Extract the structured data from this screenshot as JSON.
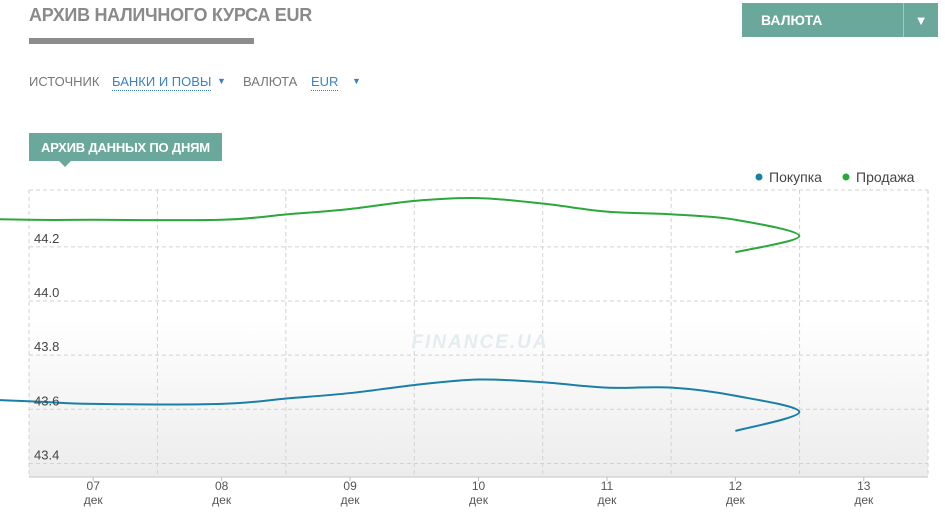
{
  "header": {
    "title": "АРХИВ НАЛИЧНОГО КУРСА EUR",
    "currency_button_label": "ВАЛЮТА",
    "currency_button_arrow": "▼"
  },
  "filters": {
    "source_label": "ИСТОЧНИК",
    "source_value": "БАНКИ И ПОВЫ",
    "currency_label": "ВАЛЮТА",
    "currency_value": "EUR",
    "arrow": "▼"
  },
  "archive_label": "АРХИВ ДАННЫХ ПО ДНЯМ",
  "watermark": "FINANCE.UA",
  "colors": {
    "accent": "#6aa89c",
    "buy": "#1a7fa8",
    "sell": "#2aa83c",
    "link": "#3b82c4"
  },
  "chart_data": {
    "type": "line",
    "title": "",
    "xlabel": "",
    "ylabel": "",
    "x": [
      "07 дек",
      "08 дек",
      "09 дек",
      "10 дек",
      "11 дек",
      "12 дек",
      "13 дек"
    ],
    "x_ticks": [
      {
        "day": "07",
        "month": "дек"
      },
      {
        "day": "08",
        "month": "дек"
      },
      {
        "day": "09",
        "month": "дек"
      },
      {
        "day": "10",
        "month": "дек"
      },
      {
        "day": "11",
        "month": "дек"
      },
      {
        "day": "12",
        "month": "дек"
      },
      {
        "day": "13",
        "month": "дек"
      }
    ],
    "y_ticks": [
      "43.4",
      "43.6",
      "43.8",
      "44.0",
      "44.2"
    ],
    "ylim": [
      43.35,
      44.41
    ],
    "grid": true,
    "legend_position": "top-right",
    "series": [
      {
        "name": "Покупка",
        "color": "#1a7fa8",
        "points": [
          [
            "06 дек",
            43.65
          ],
          [
            "07 дек",
            43.63
          ],
          [
            "07 дек",
            43.62
          ],
          [
            "08 дек",
            43.62
          ],
          [
            "08 дек",
            43.64
          ],
          [
            "09 дек",
            43.66
          ],
          [
            "09 дек",
            43.69
          ],
          [
            "10 дек",
            43.71
          ],
          [
            "10 дек",
            43.7
          ],
          [
            "11 дек",
            43.68
          ],
          [
            "11 дек",
            43.68
          ],
          [
            "12 дек",
            43.65
          ],
          [
            "12 дек",
            43.59
          ],
          [
            "12 дек",
            43.52
          ]
        ]
      },
      {
        "name": "Продажа",
        "color": "#2aa83c",
        "points": [
          [
            "06 дек",
            44.31
          ],
          [
            "07 дек",
            44.3
          ],
          [
            "07 дек",
            44.3
          ],
          [
            "08 дек",
            44.3
          ],
          [
            "08 дек",
            44.32
          ],
          [
            "09 дек",
            44.34
          ],
          [
            "09 дек",
            44.37
          ],
          [
            "10 дек",
            44.38
          ],
          [
            "10 дек",
            44.36
          ],
          [
            "11 дек",
            44.33
          ],
          [
            "11 дек",
            44.32
          ],
          [
            "12 дек",
            44.3
          ],
          [
            "12 дек",
            44.24
          ],
          [
            "12 дек",
            44.18
          ]
        ]
      }
    ]
  }
}
